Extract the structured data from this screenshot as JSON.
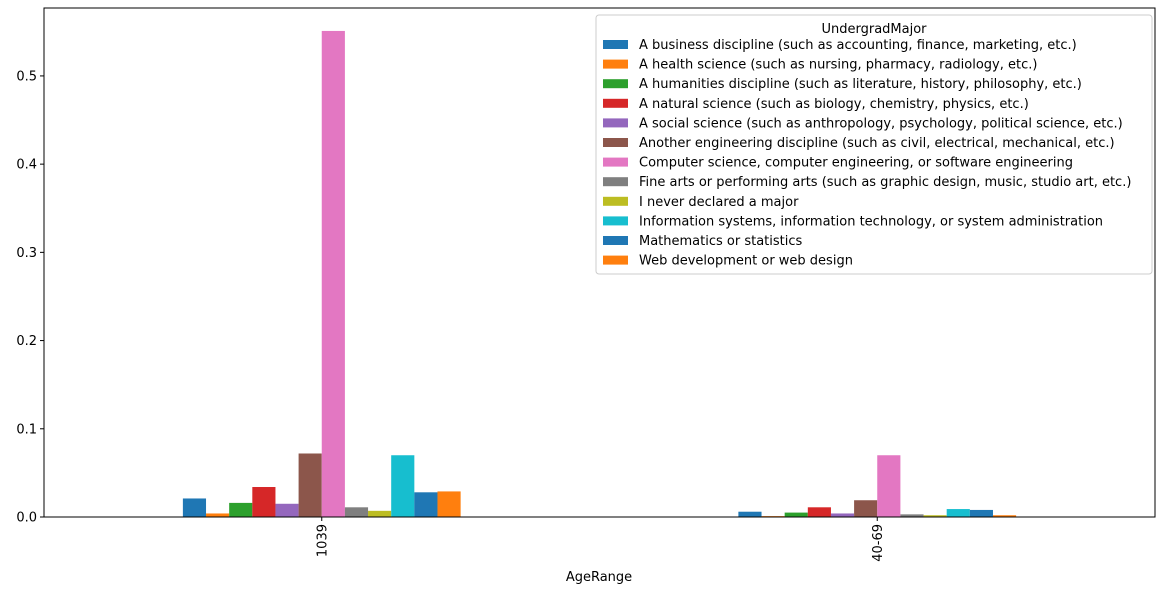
{
  "chart_data": {
    "type": "bar",
    "title": "",
    "xlabel": "AgeRange",
    "ylabel": "",
    "categories": [
      "1039",
      "40-69"
    ],
    "ylim": [
      0,
      0.577
    ],
    "yticks": [
      0.0,
      0.1,
      0.2,
      0.3,
      0.4,
      0.5
    ],
    "ytick_labels": [
      "0.0",
      "0.1",
      "0.2",
      "0.3",
      "0.4",
      "0.5"
    ],
    "legend": {
      "title": "UndergradMajor",
      "placement": "top-right"
    },
    "series": [
      {
        "name": "A business discipline (such as accounting, finance, marketing, etc.)",
        "color": "#1f77b4",
        "values": [
          0.021,
          0.006
        ]
      },
      {
        "name": "A health science (such as nursing, pharmacy, radiology, etc.)",
        "color": "#ff7f0e",
        "values": [
          0.004,
          0.001
        ]
      },
      {
        "name": "A humanities discipline (such as literature, history, philosophy, etc.)",
        "color": "#2ca02c",
        "values": [
          0.016,
          0.005
        ]
      },
      {
        "name": "A natural science (such as biology, chemistry, physics, etc.)",
        "color": "#d62728",
        "values": [
          0.034,
          0.011
        ]
      },
      {
        "name": "A social science (such as anthropology, psychology, political science, etc.)",
        "color": "#9467bd",
        "values": [
          0.015,
          0.004
        ]
      },
      {
        "name": "Another engineering discipline (such as civil, electrical, mechanical, etc.)",
        "color": "#8c564b",
        "values": [
          0.072,
          0.019
        ]
      },
      {
        "name": "Computer science, computer engineering, or software engineering",
        "color": "#e377c2",
        "values": [
          0.551,
          0.07
        ]
      },
      {
        "name": "Fine arts or performing arts (such as graphic design, music, studio art, etc.)",
        "color": "#7f7f7f",
        "values": [
          0.011,
          0.003
        ]
      },
      {
        "name": "I never declared a major",
        "color": "#bcbd22",
        "values": [
          0.007,
          0.002
        ]
      },
      {
        "name": "Information systems, information technology, or system administration",
        "color": "#17becf",
        "values": [
          0.07,
          0.009
        ]
      },
      {
        "name": "Mathematics or statistics",
        "color": "#1f77b4",
        "values": [
          0.028,
          0.008
        ]
      },
      {
        "name": "Web development or web design",
        "color": "#ff7f0e",
        "values": [
          0.029,
          0.002
        ]
      }
    ]
  }
}
